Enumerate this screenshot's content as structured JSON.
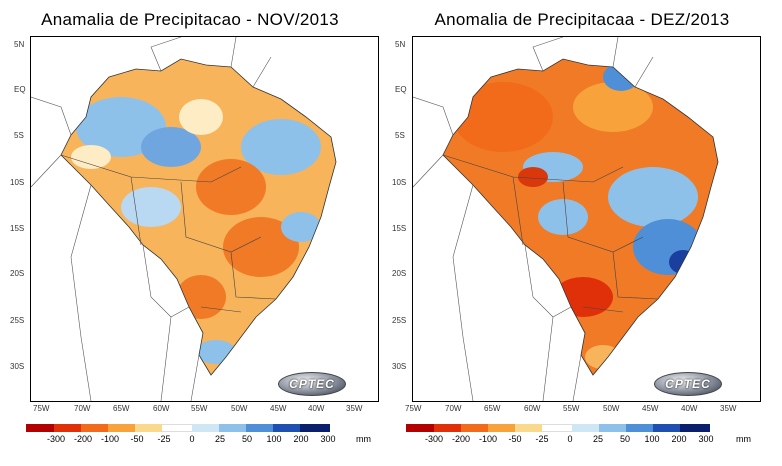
{
  "panels": [
    {
      "title": "Anamalia de Precipitacao  - NOV/2013",
      "logo": "CPTEC",
      "lat_labels": [
        "5N",
        "EQ",
        "5S",
        "10S",
        "15S",
        "20S",
        "25S",
        "30S"
      ],
      "lon_labels": [
        "75W",
        "70W",
        "65W",
        "60W",
        "55W",
        "50W",
        "45W",
        "40W",
        "35W"
      ]
    },
    {
      "title": "Anomalia de Precipitacaa  - DEZ/2013",
      "logo": "CPTEC",
      "lat_labels": [
        "5N",
        "EQ",
        "5S",
        "10S",
        "15S",
        "20S",
        "25S",
        "30S"
      ],
      "lon_labels": [
        "75W",
        "70W",
        "65W",
        "60W",
        "55W",
        "50W",
        "45W",
        "40W",
        "35W"
      ]
    }
  ],
  "legend": {
    "ticks": [
      "-300",
      "-200",
      "-100",
      "-50",
      "-25",
      "0",
      "25",
      "50",
      "100",
      "200",
      "300"
    ],
    "unit": "mm",
    "colors": [
      "#b30000",
      "#e0300a",
      "#f26b1a",
      "#f7a23a",
      "#fbd98c",
      "#ffffff",
      "#cfe6f5",
      "#8ec1ea",
      "#4f8fd8",
      "#1f4fb0",
      "#0a1f6e"
    ]
  },
  "colors": {
    "dry_strong": "#d9380c",
    "dry": "#f07a26",
    "dry_light": "#f8b45a",
    "neutral": "#fdecc4",
    "wet_light": "#b9d8f2",
    "wet": "#6fa6e0",
    "wet_strong": "#1b3f9e"
  }
}
